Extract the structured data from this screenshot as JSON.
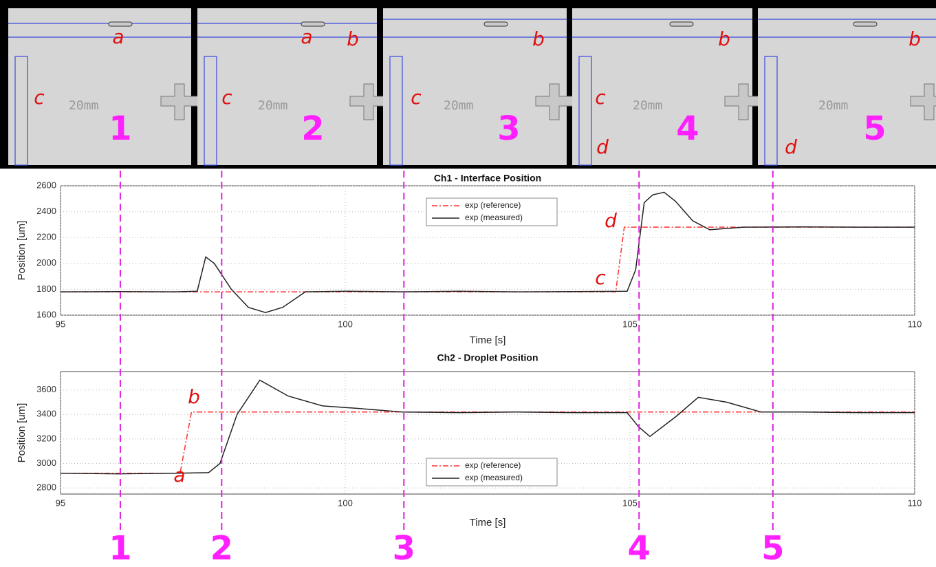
{
  "frames": [
    {
      "number": "1",
      "letters": [
        "a",
        "c"
      ]
    },
    {
      "number": "2",
      "letters": [
        "a",
        "b",
        "c"
      ]
    },
    {
      "number": "3",
      "letters": [
        "b",
        "c"
      ]
    },
    {
      "number": "4",
      "letters": [
        "b",
        "c",
        "d"
      ]
    },
    {
      "number": "5",
      "letters": [
        "b",
        "d"
      ]
    }
  ],
  "scale_label": "20mm",
  "markers": {
    "x": [
      96.05,
      97.83,
      101.03,
      105.16,
      107.51
    ],
    "labels": [
      "1",
      "2",
      "3",
      "4",
      "5"
    ],
    "color": "#e020e0"
  },
  "chart_data": [
    {
      "type": "line",
      "title": "Ch1 - Interface Position",
      "xlabel": "Time [s]",
      "ylabel": "Position [um]",
      "xlim": [
        95,
        110
      ],
      "xticks": [
        95,
        100,
        105,
        110
      ],
      "ylim": [
        1600,
        2600
      ],
      "yticks": [
        1600,
        1800,
        2000,
        2200,
        2400,
        2600
      ],
      "grid": true,
      "legend": "upper center",
      "annotations": [
        "c",
        "d"
      ],
      "series": [
        {
          "name": "exp (reference)",
          "color": "#ff3030",
          "style": "dashdot",
          "x": [
            95,
            104.75,
            104.9,
            110
          ],
          "values": [
            1780,
            1780,
            2280,
            2280
          ]
        },
        {
          "name": "exp (measured)",
          "color": "#222222",
          "style": "solid",
          "x": [
            95,
            96,
            97,
            97.4,
            97.55,
            97.7,
            98,
            98.3,
            98.6,
            98.9,
            99.3,
            100,
            101,
            102,
            103,
            104,
            104.95,
            105.1,
            105.25,
            105.4,
            105.6,
            105.8,
            106.1,
            106.4,
            107,
            108,
            109,
            110
          ],
          "values": [
            1780,
            1782,
            1780,
            1785,
            2050,
            2000,
            1800,
            1660,
            1620,
            1660,
            1780,
            1785,
            1780,
            1785,
            1780,
            1782,
            1785,
            1950,
            2470,
            2530,
            2550,
            2480,
            2330,
            2260,
            2280,
            2282,
            2280,
            2280
          ]
        }
      ]
    },
    {
      "type": "line",
      "title": "Ch2 - Droplet Position",
      "xlabel": "Time [s]",
      "ylabel": "Position [um]",
      "xlim": [
        95,
        110
      ],
      "xticks": [
        95,
        100,
        105,
        110
      ],
      "ylim": [
        2750,
        3750
      ],
      "yticks": [
        2800,
        3000,
        3200,
        3400,
        3600
      ],
      "grid": true,
      "legend": "lower center",
      "annotations": [
        "b",
        "a"
      ],
      "series": [
        {
          "name": "exp (reference)",
          "color": "#ff3030",
          "style": "dashdot",
          "x": [
            95,
            97.1,
            97.3,
            110
          ],
          "values": [
            2920,
            2920,
            3420,
            3420
          ]
        },
        {
          "name": "exp (measured)",
          "color": "#222222",
          "style": "solid",
          "x": [
            95,
            96,
            97,
            97.6,
            97.8,
            98.1,
            98.5,
            99,
            99.6,
            100.2,
            101,
            102,
            103,
            104,
            104.95,
            105.15,
            105.35,
            105.8,
            106.2,
            106.7,
            107.3,
            108,
            109,
            110
          ],
          "values": [
            2920,
            2915,
            2920,
            2925,
            3000,
            3400,
            3680,
            3550,
            3470,
            3450,
            3420,
            3415,
            3420,
            3415,
            3415,
            3300,
            3220,
            3380,
            3540,
            3500,
            3420,
            3420,
            3415,
            3415
          ]
        }
      ]
    }
  ]
}
